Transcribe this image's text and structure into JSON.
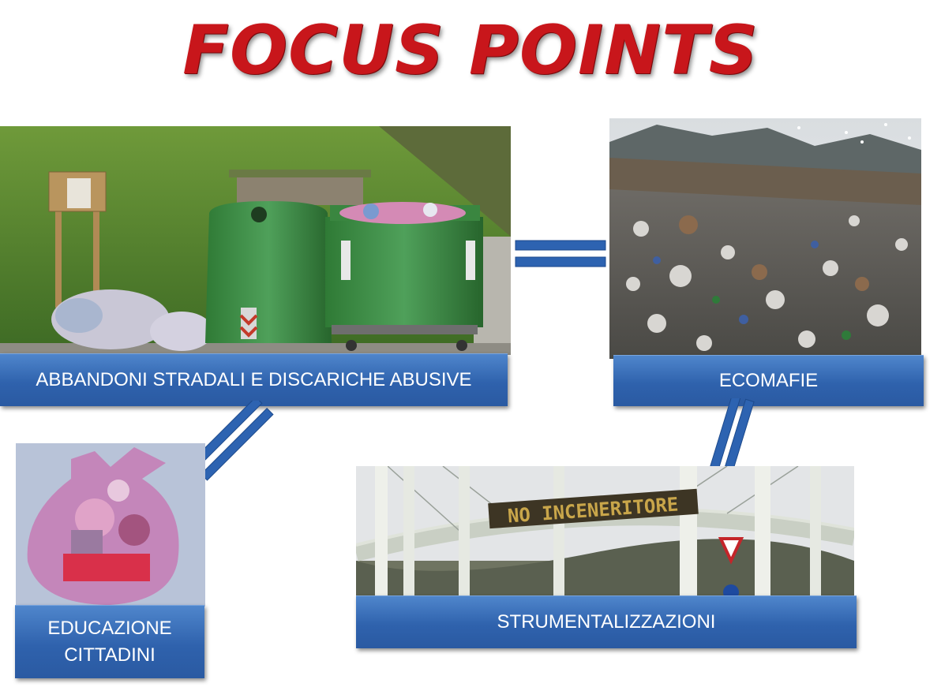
{
  "title": "FOCUS POINTS",
  "topics": {
    "abbandoni": {
      "label": "ABBANDONI STRADALI E DISCARICHE ABUSIVE",
      "image": "roadside-waste-bins-photo"
    },
    "ecomafie": {
      "label": "ECOMAFIE",
      "image": "landfill-photo"
    },
    "educazione": {
      "label_line1": "EDUCAZIONE",
      "label_line2": "CITTADINI",
      "image": "garbage-bag-photo"
    },
    "strumentalizzazioni": {
      "label": "STRUMENTALIZZAZIONI",
      "image": "bridge-protest-banner-photo",
      "banner_text": "NO INCENERITORE"
    }
  },
  "colors": {
    "title": "#c8161b",
    "label_blue": "#2f62ad",
    "connector": "#2d63b1"
  }
}
